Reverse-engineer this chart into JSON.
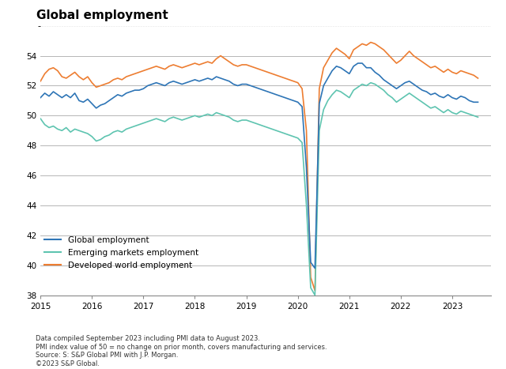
{
  "title": "Global employment",
  "xlim_start": 2015.0,
  "xlim_end": 2023.75,
  "ylim": [
    38,
    56
  ],
  "yticks_major": [
    38,
    40,
    42,
    44,
    46,
    48,
    50,
    52,
    54
  ],
  "background_color": "#ffffff",
  "grid_color_major": "#aaaaaa",
  "grid_color_minor": "#cccccc",
  "footnote_lines": [
    "Data compiled September 2023 including PMI data to August 2023.",
    "PMI index value of 50 = no change on prior month, covers manufacturing and services.",
    "Source: S: S&P Global PMI with J.P. Morgan.",
    "©2023 S&P Global."
  ],
  "series": {
    "global": {
      "label": "Global employment",
      "color": "#2e75b6",
      "linewidth": 1.2
    },
    "emerging": {
      "label": "Emerging markets employment",
      "color": "#5ec4b0",
      "linewidth": 1.2
    },
    "developed": {
      "label": "Developed world employment",
      "color": "#ed7d31",
      "linewidth": 1.2
    }
  },
  "dates": [
    2015.0,
    2015.083,
    2015.167,
    2015.25,
    2015.333,
    2015.417,
    2015.5,
    2015.583,
    2015.667,
    2015.75,
    2015.833,
    2015.917,
    2016.0,
    2016.083,
    2016.167,
    2016.25,
    2016.333,
    2016.417,
    2016.5,
    2016.583,
    2016.667,
    2016.75,
    2016.833,
    2016.917,
    2017.0,
    2017.083,
    2017.167,
    2017.25,
    2017.333,
    2017.417,
    2017.5,
    2017.583,
    2017.667,
    2017.75,
    2017.833,
    2017.917,
    2018.0,
    2018.083,
    2018.167,
    2018.25,
    2018.333,
    2018.417,
    2018.5,
    2018.583,
    2018.667,
    2018.75,
    2018.833,
    2018.917,
    2019.0,
    2019.083,
    2019.167,
    2019.25,
    2019.333,
    2019.417,
    2019.5,
    2019.583,
    2019.667,
    2019.75,
    2019.833,
    2019.917,
    2020.0,
    2020.083,
    2020.167,
    2020.25,
    2020.333,
    2020.417,
    2020.5,
    2020.583,
    2020.667,
    2020.75,
    2020.833,
    2020.917,
    2021.0,
    2021.083,
    2021.167,
    2021.25,
    2021.333,
    2021.417,
    2021.5,
    2021.583,
    2021.667,
    2021.75,
    2021.833,
    2021.917,
    2022.0,
    2022.083,
    2022.167,
    2022.25,
    2022.333,
    2022.417,
    2022.5,
    2022.583,
    2022.667,
    2022.75,
    2022.833,
    2022.917,
    2023.0,
    2023.083,
    2023.167,
    2023.25,
    2023.333,
    2023.417,
    2023.5
  ],
  "global_values": [
    51.2,
    51.5,
    51.3,
    51.6,
    51.4,
    51.2,
    51.4,
    51.2,
    51.5,
    51.0,
    50.9,
    51.1,
    50.8,
    50.5,
    50.7,
    50.8,
    51.0,
    51.2,
    51.4,
    51.3,
    51.5,
    51.6,
    51.7,
    51.7,
    51.8,
    52.0,
    52.1,
    52.2,
    52.1,
    52.0,
    52.2,
    52.3,
    52.2,
    52.1,
    52.2,
    52.3,
    52.4,
    52.3,
    52.4,
    52.5,
    52.4,
    52.6,
    52.5,
    52.4,
    52.3,
    52.1,
    52.0,
    52.1,
    52.1,
    52.0,
    51.9,
    51.8,
    51.7,
    51.6,
    51.5,
    51.4,
    51.3,
    51.2,
    51.1,
    51.0,
    50.9,
    50.6,
    46.5,
    40.2,
    39.8,
    50.8,
    52.0,
    52.5,
    53.0,
    53.3,
    53.2,
    53.0,
    52.8,
    53.3,
    53.5,
    53.5,
    53.2,
    53.2,
    52.9,
    52.7,
    52.4,
    52.2,
    52.0,
    51.8,
    52.0,
    52.2,
    52.3,
    52.1,
    51.9,
    51.7,
    51.6,
    51.4,
    51.5,
    51.3,
    51.2,
    51.4,
    51.2,
    51.1,
    51.3,
    51.2,
    51.0,
    50.9,
    50.9
  ],
  "emerging_values": [
    49.8,
    49.4,
    49.2,
    49.3,
    49.1,
    49.0,
    49.2,
    48.9,
    49.1,
    49.0,
    48.9,
    48.8,
    48.6,
    48.3,
    48.4,
    48.6,
    48.7,
    48.9,
    49.0,
    48.9,
    49.1,
    49.2,
    49.3,
    49.4,
    49.5,
    49.6,
    49.7,
    49.8,
    49.7,
    49.6,
    49.8,
    49.9,
    49.8,
    49.7,
    49.8,
    49.9,
    50.0,
    49.9,
    50.0,
    50.1,
    50.0,
    50.2,
    50.1,
    50.0,
    49.9,
    49.7,
    49.6,
    49.7,
    49.7,
    49.6,
    49.5,
    49.4,
    49.3,
    49.2,
    49.1,
    49.0,
    48.9,
    48.8,
    48.7,
    48.6,
    48.5,
    48.2,
    44.0,
    38.5,
    38.0,
    49.0,
    50.4,
    51.0,
    51.4,
    51.7,
    51.6,
    51.4,
    51.2,
    51.7,
    51.9,
    52.1,
    52.0,
    52.2,
    52.1,
    51.9,
    51.7,
    51.4,
    51.2,
    50.9,
    51.1,
    51.3,
    51.5,
    51.3,
    51.1,
    50.9,
    50.7,
    50.5,
    50.6,
    50.4,
    50.2,
    50.4,
    50.2,
    50.1,
    50.3,
    50.2,
    50.1,
    50.0,
    49.9
  ],
  "developed_values": [
    52.3,
    52.8,
    53.1,
    53.2,
    53.0,
    52.6,
    52.5,
    52.7,
    52.9,
    52.6,
    52.4,
    52.6,
    52.2,
    51.9,
    52.0,
    52.1,
    52.2,
    52.4,
    52.5,
    52.4,
    52.6,
    52.7,
    52.8,
    52.9,
    53.0,
    53.1,
    53.2,
    53.3,
    53.2,
    53.1,
    53.3,
    53.4,
    53.3,
    53.2,
    53.3,
    53.4,
    53.5,
    53.4,
    53.5,
    53.6,
    53.5,
    53.8,
    54.0,
    53.8,
    53.6,
    53.4,
    53.3,
    53.4,
    53.4,
    53.3,
    53.2,
    53.1,
    53.0,
    52.9,
    52.8,
    52.7,
    52.6,
    52.5,
    52.4,
    52.3,
    52.2,
    51.8,
    49.0,
    39.2,
    38.3,
    51.8,
    53.2,
    53.7,
    54.2,
    54.5,
    54.3,
    54.1,
    53.8,
    54.4,
    54.6,
    54.8,
    54.7,
    54.9,
    54.8,
    54.6,
    54.4,
    54.1,
    53.8,
    53.5,
    53.7,
    54.0,
    54.3,
    54.0,
    53.8,
    53.6,
    53.4,
    53.2,
    53.3,
    53.1,
    52.9,
    53.1,
    52.9,
    52.8,
    53.0,
    52.9,
    52.8,
    52.7,
    52.5
  ]
}
